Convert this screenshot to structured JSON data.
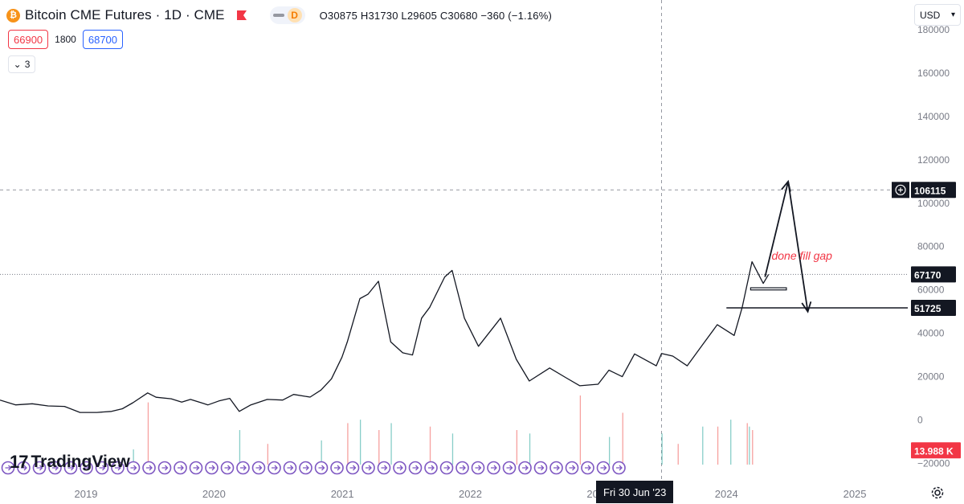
{
  "header": {
    "symbol": "Bitcoin CME Futures · 1D · CME",
    "btc_glyph": "₿",
    "interval_badge": "D",
    "ohlc": "O30875  H31730  L29605  C30680  −360 (−1.16%)"
  },
  "trade": {
    "sell": "66900",
    "spread": "1800",
    "buy": "68700"
  },
  "indicators_count": "3",
  "currency": "USD",
  "crosshair_time": "Fri 30 Jun '23",
  "branding": {
    "logo_mark": "17",
    "logo_text": "TradingView"
  },
  "colors": {
    "price_line": "#131722",
    "volume_up": "#26a69a",
    "volume_down": "#ef5350",
    "annotation": "#f23645",
    "crosshair": "#9598a1",
    "badge_dark": "#131722",
    "badge_red": "#f23645"
  },
  "chart_data": {
    "type": "line",
    "ylim": [
      -25000,
      190000
    ],
    "y_ticks": [
      "180000",
      "160000",
      "140000",
      "120000",
      "100000",
      "80000",
      "60000",
      "40000",
      "20000",
      "0",
      "−20000"
    ],
    "x_ticks": [
      "2019",
      "2020",
      "2021",
      "2022",
      "2023",
      "2024",
      "2025"
    ],
    "x_range": [
      "2018-05-01",
      "2025-06-01"
    ],
    "series": [
      {
        "values": [
          [
            "2018-05-01",
            9200
          ],
          [
            "2018-06-15",
            7000
          ],
          [
            "2018-08-01",
            7500
          ],
          [
            "2018-09-15",
            6500
          ],
          [
            "2018-11-01",
            6300
          ],
          [
            "2018-12-15",
            3500
          ],
          [
            "2019-02-01",
            3500
          ],
          [
            "2019-03-15",
            4000
          ],
          [
            "2019-04-15",
            5200
          ],
          [
            "2019-05-15",
            8000
          ],
          [
            "2019-06-26",
            12500
          ],
          [
            "2019-07-20",
            10500
          ],
          [
            "2019-09-01",
            9800
          ],
          [
            "2019-10-01",
            8300
          ],
          [
            "2019-10-26",
            9500
          ],
          [
            "2019-12-15",
            7000
          ],
          [
            "2020-01-15",
            8800
          ],
          [
            "2020-02-15",
            10000
          ],
          [
            "2020-03-13",
            4000
          ],
          [
            "2020-04-15",
            7000
          ],
          [
            "2020-06-01",
            9500
          ],
          [
            "2020-07-15",
            9200
          ],
          [
            "2020-08-15",
            11800
          ],
          [
            "2020-10-01",
            10600
          ],
          [
            "2020-11-01",
            13800
          ],
          [
            "2020-12-01",
            19000
          ],
          [
            "2020-12-31",
            29000
          ],
          [
            "2021-01-15",
            36000
          ],
          [
            "2021-02-20",
            56000
          ],
          [
            "2021-03-15",
            58000
          ],
          [
            "2021-04-14",
            64000
          ],
          [
            "2021-05-19",
            36000
          ],
          [
            "2021-06-22",
            31000
          ],
          [
            "2021-07-20",
            30000
          ],
          [
            "2021-08-15",
            47000
          ],
          [
            "2021-09-07",
            52000
          ],
          [
            "2021-10-20",
            66000
          ],
          [
            "2021-11-10",
            69000
          ],
          [
            "2021-12-15",
            47000
          ],
          [
            "2022-01-24",
            34000
          ],
          [
            "2022-03-28",
            47000
          ],
          [
            "2022-05-12",
            28000
          ],
          [
            "2022-06-18",
            18000
          ],
          [
            "2022-08-15",
            24000
          ],
          [
            "2022-10-01",
            19500
          ],
          [
            "2022-11-09",
            15800
          ],
          [
            "2022-12-31",
            16500
          ],
          [
            "2023-01-31",
            23000
          ],
          [
            "2023-03-10",
            20000
          ],
          [
            "2023-04-14",
            30500
          ],
          [
            "2023-06-15",
            25000
          ],
          [
            "2023-06-30",
            30680
          ],
          [
            "2023-08-01",
            29500
          ],
          [
            "2023-09-11",
            25000
          ],
          [
            "2023-10-24",
            34500
          ],
          [
            "2023-12-06",
            44000
          ],
          [
            "2024-01-23",
            39000
          ],
          [
            "2024-02-15",
            52000
          ],
          [
            "2024-03-14",
            73000
          ],
          [
            "2024-04-15",
            63000
          ],
          [
            "2024-04-30",
            67170
          ]
        ]
      }
    ],
    "volume": {
      "ylim_top": 10,
      "bars": [
        [
          "2019-05-15",
          2.2
        ],
        [
          "2019-06-26",
          9.0
        ],
        [
          "2020-03-13",
          5.0
        ],
        [
          "2020-06-01",
          3.0
        ],
        [
          "2020-11-01",
          3.5
        ],
        [
          "2021-01-15",
          6.0
        ],
        [
          "2021-02-20",
          6.5
        ],
        [
          "2021-04-14",
          5.0
        ],
        [
          "2021-05-19",
          6.0
        ],
        [
          "2021-09-07",
          5.5
        ],
        [
          "2021-11-10",
          4.5
        ],
        [
          "2022-05-12",
          5.0
        ],
        [
          "2022-06-18",
          4.5
        ],
        [
          "2022-11-09",
          10.0
        ],
        [
          "2023-01-31",
          4.0
        ],
        [
          "2023-03-10",
          7.5
        ],
        [
          "2023-06-30",
          4.5
        ],
        [
          "2023-08-15",
          3.0
        ],
        [
          "2023-10-24",
          5.5
        ],
        [
          "2023-12-06",
          5.5
        ],
        [
          "2024-01-12",
          6.5
        ],
        [
          "2024-02-28",
          6.0
        ],
        [
          "2024-03-05",
          5.5
        ],
        [
          "2024-03-14",
          5.0
        ]
      ]
    },
    "levels": [
      {
        "value": 106115,
        "label": "106115",
        "style": "dashed"
      },
      {
        "value": 67170,
        "label": "67170",
        "style": "dotted"
      },
      {
        "value": 51725,
        "label": "51725",
        "style": "solid"
      },
      {
        "value": -13988,
        "label": "13.988 K",
        "style": "volume"
      }
    ],
    "annotations": [
      {
        "text": "done  fill gap",
        "x": "2024-04-25",
        "y": 74000
      }
    ],
    "projection": [
      [
        "2024-04-20",
        66000
      ],
      [
        "2024-06-25",
        110000
      ],
      [
        "2024-08-20",
        50000
      ]
    ],
    "gap_zone": {
      "x1": "2024-03-10",
      "x2": "2024-06-20",
      "y1": 61000,
      "y2": 60000
    },
    "events_count": 40
  }
}
